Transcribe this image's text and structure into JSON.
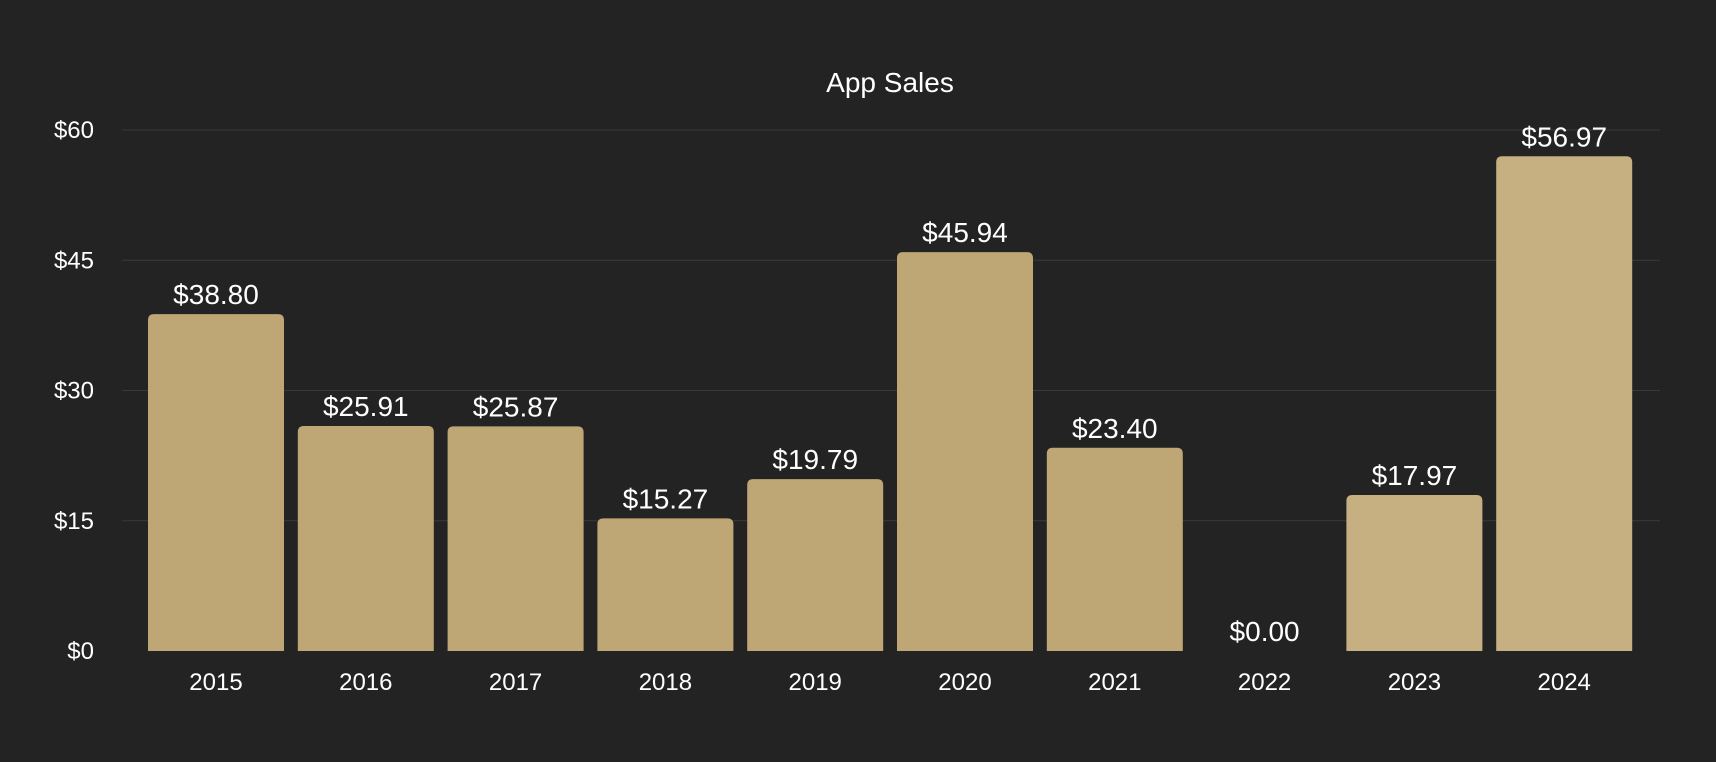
{
  "chart_data": {
    "type": "bar",
    "title": "App Sales",
    "xlabel": "",
    "ylabel": "",
    "categories": [
      "2015",
      "2016",
      "2017",
      "2018",
      "2019",
      "2020",
      "2021",
      "2022",
      "2023",
      "2024"
    ],
    "values": [
      38.8,
      25.91,
      25.87,
      15.27,
      19.79,
      45.94,
      23.4,
      0.0,
      17.97,
      56.97
    ],
    "data_labels": [
      "$38.80",
      "$25.91",
      "$25.87",
      "$15.27",
      "$19.79",
      "$45.94",
      "$23.40",
      "$0.00",
      "$17.97",
      "$56.97"
    ],
    "ylim": [
      0,
      60
    ],
    "yticks": [
      0,
      15,
      30,
      45,
      60
    ],
    "ytick_labels": [
      "$0",
      "$15",
      "$30",
      "$45",
      "$60"
    ],
    "grid": true,
    "legend": "none",
    "colors": {
      "background": "#232323",
      "bar": "#bfa675",
      "bar_highlight": "#c6af80",
      "grid": "#3a3a3a",
      "text": "#ffffff"
    }
  }
}
